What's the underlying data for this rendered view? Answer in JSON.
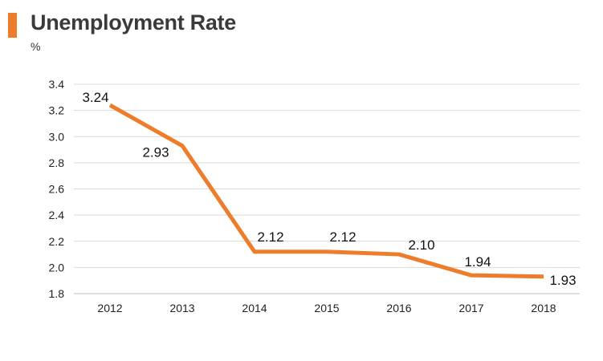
{
  "header": {
    "title": "Unemployment Rate",
    "unit": "%",
    "accent_color": "#ee7d2b"
  },
  "chart_data": {
    "type": "line",
    "title": "Unemployment Rate",
    "ylabel": "%",
    "xlabel": "",
    "categories": [
      "2012",
      "2013",
      "2014",
      "2015",
      "2016",
      "2017",
      "2018"
    ],
    "series": [
      {
        "values": [
          3.24,
          2.93,
          2.12,
          2.12,
          2.1,
          1.94,
          1.93
        ],
        "labels": [
          "3.24",
          "2.93",
          "2.12",
          "2.12",
          "2.10",
          "1.94",
          "1.93"
        ],
        "color": "#ee7d2b"
      }
    ],
    "ylim": [
      1.8,
      3.4
    ],
    "yticks": [
      "1.8",
      "2.0",
      "2.2",
      "2.4",
      "2.6",
      "2.8",
      "3.0",
      "3.2",
      "3.4"
    ],
    "grid": true,
    "grid_color": "#d9d9d9",
    "legend": "none"
  }
}
